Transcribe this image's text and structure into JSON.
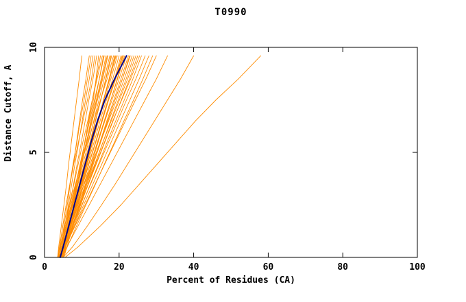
{
  "page": {
    "background": "#ffffff"
  },
  "chart_data": {
    "type": "line",
    "title": "T0990",
    "xlabel": "Percent of Residues (CA)",
    "ylabel": "Distance Cutoff, A",
    "xlim": [
      0,
      100
    ],
    "ylim": [
      0,
      10
    ],
    "x_ticks": [
      0,
      20,
      40,
      60,
      80,
      100
    ],
    "y_ticks": [
      0,
      5,
      10
    ],
    "grid": false,
    "legend": "none",
    "colors": {
      "model": "#FF8C00",
      "highlight": "#00008B",
      "frame": "#000000"
    },
    "y_levels": [
      0,
      0.5,
      1.5,
      2.5,
      3.5,
      4.5,
      5.5,
      6.5,
      7.5,
      8.5,
      9.6
    ],
    "models": [
      [
        3.5,
        3.8,
        4.5,
        5.2,
        5.9,
        6.5,
        7.2,
        7.9,
        8.6,
        9.3,
        10
      ],
      [
        4,
        4.4,
        5.2,
        6.1,
        6.9,
        7.8,
        8.6,
        9.4,
        10.2,
        11.1,
        12
      ],
      [
        3.8,
        4.1,
        4.9,
        5.8,
        6.8,
        7.9,
        9.1,
        10.3,
        11.5,
        12.6,
        13.5
      ],
      [
        4.2,
        4.7,
        5.7,
        6.8,
        7.8,
        8.8,
        9.9,
        10.9,
        11.9,
        13,
        14
      ],
      [
        4.5,
        5.3,
        6.6,
        7.8,
        8.8,
        9.8,
        10.8,
        11.8,
        12.8,
        13.9,
        15
      ],
      [
        3.6,
        4.2,
        5.4,
        6.6,
        7.9,
        9.1,
        10.3,
        11.6,
        12.8,
        14.1,
        15.5
      ],
      [
        4,
        4.6,
        5.9,
        7.1,
        8.4,
        9.6,
        10.9,
        12.1,
        13.4,
        14.7,
        16
      ],
      [
        4.4,
        5,
        6.3,
        7.5,
        8.8,
        10,
        11.3,
        12.6,
        13.9,
        15.2,
        16.5
      ],
      [
        3.9,
        4.6,
        6,
        7.3,
        8.7,
        10,
        11.4,
        12.8,
        14.2,
        15.6,
        17
      ],
      [
        4.1,
        4.8,
        6.2,
        7.6,
        9,
        10.4,
        11.8,
        13.2,
        14.6,
        16,
        17.5
      ],
      [
        4.3,
        5,
        6.4,
        7.9,
        9.3,
        10.7,
        12.2,
        13.6,
        15.1,
        16.5,
        18
      ],
      [
        3.7,
        4.2,
        5.4,
        6.8,
        8.3,
        9.9,
        11.6,
        13.3,
        15,
        16.8,
        18.5
      ],
      [
        4.6,
        5.4,
        6.9,
        8.4,
        9.9,
        11.4,
        12.9,
        14.4,
        15.9,
        17.5,
        19
      ],
      [
        4,
        4.8,
        6.4,
        8,
        9.7,
        11.3,
        12.9,
        14.5,
        16.2,
        17.8,
        19.5
      ],
      [
        4.2,
        5,
        6.7,
        8.3,
        10,
        11.6,
        13.3,
        14.9,
        16.6,
        18.3,
        20
      ],
      [
        4.5,
        5.3,
        7,
        8.7,
        10.3,
        12,
        13.7,
        15.3,
        17,
        18.8,
        20.5
      ],
      [
        3.8,
        4.7,
        6.5,
        8.3,
        10.1,
        11.9,
        13.7,
        15.4,
        17.2,
        19.1,
        21
      ],
      [
        4.4,
        5.3,
        7.1,
        8.9,
        10.6,
        12.4,
        14.2,
        16,
        17.8,
        19.6,
        21.5
      ],
      [
        4,
        5,
        6.8,
        8.7,
        10.6,
        12.4,
        14.3,
        16.2,
        18.1,
        20,
        22
      ],
      [
        4.7,
        5.6,
        7.5,
        9.3,
        11.2,
        13,
        14.9,
        16.7,
        18.6,
        20.5,
        22.5
      ],
      [
        4.1,
        5.1,
        7,
        9,
        11,
        12.9,
        14.9,
        16.9,
        18.9,
        20.9,
        23
      ],
      [
        4.3,
        5,
        6.7,
        8.6,
        10.7,
        12.8,
        15,
        17.2,
        19.3,
        21.4,
        23.5
      ],
      [
        4.6,
        5.6,
        7.6,
        9.7,
        11.7,
        13.7,
        15.7,
        17.7,
        19.8,
        21.9,
        24
      ],
      [
        3.9,
        5,
        7.1,
        9.2,
        11.4,
        13.6,
        15.7,
        17.9,
        20.1,
        22.3,
        24.5
      ],
      [
        4.2,
        5.3,
        7.5,
        9.6,
        11.8,
        14,
        16.2,
        18.4,
        20.6,
        22.8,
        25
      ],
      [
        4.5,
        5.6,
        7.9,
        10.1,
        12.3,
        14.6,
        16.8,
        19.1,
        21.4,
        23.7,
        26
      ],
      [
        4,
        5.2,
        7.6,
        10,
        12.4,
        14.8,
        17.2,
        19.6,
        22,
        24.5,
        27
      ],
      [
        4.4,
        5.6,
        8.1,
        10.5,
        13,
        15.5,
        17.9,
        20.4,
        22.9,
        25.4,
        28
      ],
      [
        4.8,
        6.1,
        8.6,
        11.1,
        13.7,
        16.2,
        18.8,
        21.3,
        23.9,
        26.4,
        29
      ],
      [
        4.1,
        5.5,
        8.2,
        10.9,
        13.6,
        16.3,
        19,
        21.7,
        24.4,
        27.2,
        30
      ],
      [
        4.5,
        6,
        9,
        12,
        15,
        18,
        21,
        24,
        27,
        30,
        33
      ],
      [
        5,
        7.5,
        11.5,
        15.3,
        19,
        22.5,
        26,
        29.5,
        33,
        36.5,
        40
      ],
      [
        5.5,
        9,
        15,
        20.5,
        25.5,
        30.5,
        35.5,
        40.5,
        46,
        52,
        58
      ],
      [
        4.2,
        4.6,
        5.5,
        6.4,
        7.3,
        8.2,
        9.2,
        10.1,
        11,
        12,
        13
      ],
      [
        4.6,
        5.2,
        6.3,
        7.4,
        8.5,
        9.7,
        10.8,
        11.9,
        13.1,
        13.8,
        14.5
      ],
      [
        3.6,
        4.3,
        5.7,
        7.1,
        8.4,
        9.8,
        11.2,
        12.6,
        14,
        15.4,
        16.8
      ],
      [
        4.8,
        5.5,
        7,
        8.5,
        9.9,
        11.4,
        12.9,
        14.3,
        15.8,
        17.3,
        18.8
      ],
      [
        4.3,
        5.2,
        6.9,
        8.6,
        10.3,
        12,
        13.8,
        15.5,
        17.2,
        19,
        20.8
      ],
      [
        4.7,
        5.7,
        7.6,
        9.5,
        11.4,
        13.2,
        15.1,
        17,
        18.9,
        20.9,
        22.8
      ],
      [
        4.1,
        5.2,
        7.3,
        9.5,
        11.7,
        13.9,
        16.1,
        18.3,
        20.7,
        23.1,
        25.5
      ],
      [
        5,
        5.7,
        7,
        8.4,
        9.7,
        11,
        12.4,
        13.7,
        15.1,
        16.4,
        17.8
      ],
      [
        5.2,
        6,
        7.7,
        9.4,
        11,
        12.7,
        14.4,
        16.1,
        17.8,
        19.5,
        21.2
      ],
      [
        3.5,
        4,
        4.9,
        5.8,
        6.8,
        7.7,
        8.7,
        9.6,
        10.6,
        11.5,
        12.5
      ],
      [
        4.9,
        5.5,
        6.7,
        7.8,
        9,
        10.1,
        11.3,
        12.4,
        13.6,
        14.7,
        15.8
      ],
      [
        4.2,
        5,
        6.6,
        8.1,
        9.7,
        11.2,
        12.8,
        14.3,
        15.9,
        17.4,
        19.2
      ]
    ],
    "highlight": [
      4.2,
      5,
      6.5,
      8,
      9.5,
      11,
      12.5,
      14.2,
      16.2,
      18.8,
      22
    ]
  }
}
